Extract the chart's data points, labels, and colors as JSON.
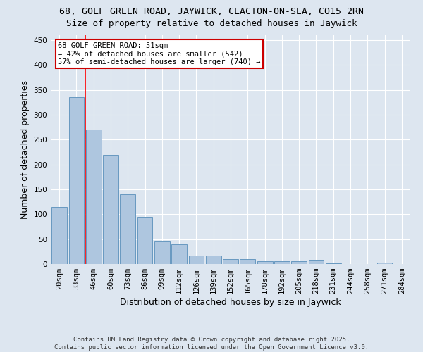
{
  "title": "68, GOLF GREEN ROAD, JAYWICK, CLACTON-ON-SEA, CO15 2RN",
  "subtitle": "Size of property relative to detached houses in Jaywick",
  "xlabel": "Distribution of detached houses by size in Jaywick",
  "ylabel": "Number of detached properties",
  "categories": [
    "20sqm",
    "33sqm",
    "46sqm",
    "60sqm",
    "73sqm",
    "86sqm",
    "99sqm",
    "112sqm",
    "126sqm",
    "139sqm",
    "152sqm",
    "165sqm",
    "178sqm",
    "192sqm",
    "205sqm",
    "218sqm",
    "231sqm",
    "244sqm",
    "258sqm",
    "271sqm",
    "284sqm"
  ],
  "values": [
    115,
    335,
    270,
    220,
    140,
    95,
    45,
    40,
    17,
    17,
    10,
    10,
    6,
    5,
    5,
    7,
    2,
    0,
    0,
    3,
    0
  ],
  "bar_color": "#aec6df",
  "bar_edgecolor": "#6899c0",
  "background_color": "#dde6f0",
  "grid_color": "#ffffff",
  "redline_x": 1.5,
  "annotation_text": "68 GOLF GREEN ROAD: 51sqm\n← 42% of detached houses are smaller (542)\n57% of semi-detached houses are larger (740) →",
  "annotation_box_facecolor": "#ffffff",
  "annotation_box_edgecolor": "#cc0000",
  "footer": "Contains HM Land Registry data © Crown copyright and database right 2025.\nContains public sector information licensed under the Open Government Licence v3.0.",
  "ylim": [
    0,
    460
  ],
  "yticks": [
    0,
    50,
    100,
    150,
    200,
    250,
    300,
    350,
    400,
    450
  ],
  "title_fontsize": 9.5,
  "subtitle_fontsize": 9,
  "xlabel_fontsize": 9,
  "ylabel_fontsize": 9,
  "tick_fontsize": 7.5,
  "annotation_fontsize": 7.5,
  "footer_fontsize": 6.5
}
